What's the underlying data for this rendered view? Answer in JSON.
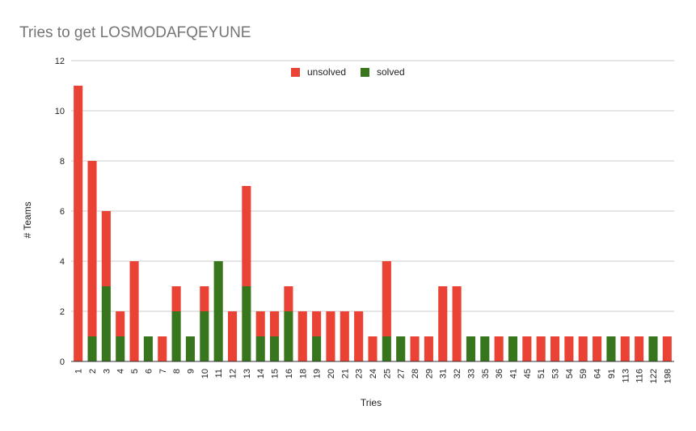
{
  "chart_data": {
    "type": "bar",
    "stacked": true,
    "title": "Tries to get LOSMODAFQEYUNE",
    "xlabel": "Tries",
    "ylabel": "# Teams",
    "ylim": [
      0,
      12
    ],
    "yticks": [
      0,
      2,
      4,
      6,
      8,
      10,
      12
    ],
    "grid": true,
    "legend_position": "top-center",
    "categories": [
      "1",
      "2",
      "3",
      "4",
      "5",
      "6",
      "7",
      "8",
      "9",
      "10",
      "11",
      "12",
      "13",
      "14",
      "15",
      "16",
      "18",
      "19",
      "20",
      "21",
      "23",
      "24",
      "25",
      "27",
      "28",
      "29",
      "31",
      "32",
      "33",
      "35",
      "36",
      "41",
      "45",
      "51",
      "53",
      "54",
      "59",
      "64",
      "91",
      "113",
      "116",
      "122",
      "198"
    ],
    "series": [
      {
        "name": "unsolved",
        "color": "#ea4335",
        "values": [
          11,
          7,
          3,
          1,
          4,
          0,
          1,
          1,
          0,
          1,
          0,
          2,
          4,
          1,
          1,
          1,
          2,
          1,
          2,
          2,
          2,
          1,
          3,
          0,
          1,
          1,
          3,
          3,
          0,
          0,
          1,
          0,
          1,
          1,
          1,
          1,
          1,
          1,
          0,
          1,
          1,
          0,
          1
        ]
      },
      {
        "name": "solved",
        "color": "#38761d",
        "values": [
          0,
          1,
          3,
          1,
          0,
          1,
          0,
          2,
          1,
          2,
          4,
          0,
          3,
          1,
          1,
          2,
          0,
          1,
          0,
          0,
          0,
          0,
          1,
          1,
          0,
          0,
          0,
          0,
          1,
          1,
          0,
          1,
          0,
          0,
          0,
          0,
          0,
          0,
          1,
          0,
          0,
          1,
          0
        ]
      }
    ]
  }
}
